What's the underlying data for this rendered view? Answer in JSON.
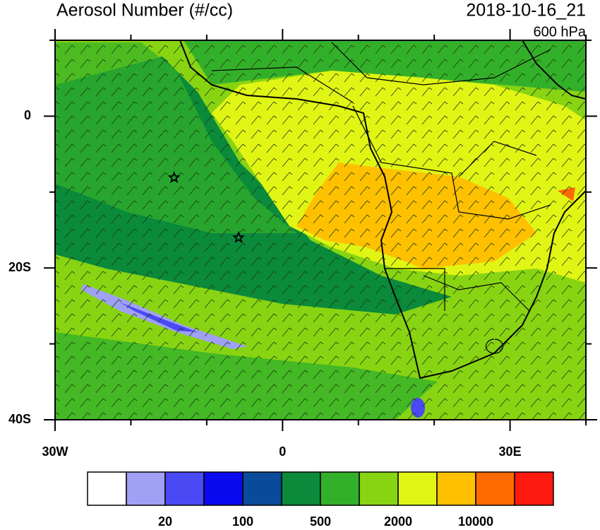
{
  "chart_data": {
    "type": "map",
    "title": "Aerosol Number (#/cc)",
    "subtitle": "2018-10-16_21",
    "level_label": "600 hPa",
    "xlim": [
      -30,
      40
    ],
    "ylim": [
      -40,
      10
    ],
    "xticks": [
      {
        "value": -30,
        "label": "30W"
      },
      0,
      {
        "value": 30,
        "label": "30E"
      }
    ],
    "yticks": [
      0,
      {
        "value": -20,
        "label": "20S"
      },
      {
        "value": -40,
        "label": "40S"
      }
    ],
    "xminorticks": [
      -20,
      -10,
      10,
      20,
      40
    ],
    "yminorticks": [
      -30,
      -10,
      10
    ],
    "markers": {
      "x": [
        -14.3,
        -5.8
      ],
      "y": [
        -8.1,
        -16
      ]
    },
    "colorbar": {
      "colors": [
        "#ffffff",
        "#a0a0f5",
        "#4a4af5",
        "#0a0af0",
        "#0a4a9a",
        "#0a8a3a",
        "#33b02a",
        "#88d412",
        "#e0f514",
        "#ffc000",
        "#ff6a00",
        "#ff1a10"
      ],
      "labels": [
        20,
        100,
        500,
        2000,
        10000
      ]
    }
  }
}
